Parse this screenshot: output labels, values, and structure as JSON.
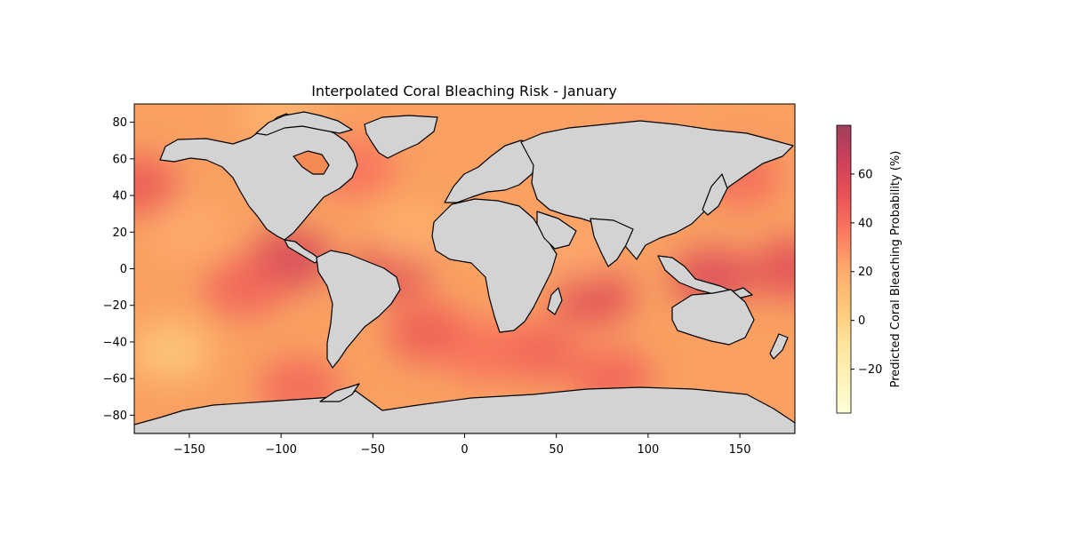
{
  "chart_data": {
    "type": "heatmap",
    "title": "Interpolated Coral Bleaching Risk - January",
    "xlabel": "",
    "ylabel": "",
    "xlim": [
      -180,
      180
    ],
    "ylim": [
      -90,
      90
    ],
    "x_ticks": [
      -150,
      -100,
      -50,
      0,
      50,
      100,
      150
    ],
    "y_ticks": [
      -80,
      -60,
      -40,
      -20,
      0,
      20,
      40,
      60,
      80
    ],
    "x_tick_labels": [
      "−150",
      "−100",
      "−50",
      "0",
      "50",
      "100",
      "150"
    ],
    "y_tick_labels": [
      "−80",
      "−60",
      "−40",
      "−20",
      "0",
      "20",
      "40",
      "60",
      "80"
    ],
    "colorbar": {
      "label": "Predicted Coral Bleaching Probability (%)",
      "range": [
        -38,
        80
      ],
      "ticks": [
        -20,
        0,
        20,
        40,
        60
      ],
      "tick_labels": [
        "−20",
        "0",
        "20",
        "40",
        "60"
      ],
      "colormap": "YlOrRd",
      "alpha": 0.75
    },
    "land_color": "#d3d3d3",
    "coastline_color": "#000000",
    "grid": false,
    "hotspots": [
      {
        "lon": -95,
        "lat": 5,
        "value": 62
      },
      {
        "lon": -40,
        "lat": 0,
        "value": 55
      },
      {
        "lon": 70,
        "lat": -15,
        "value": 55
      },
      {
        "lon": 135,
        "lat": -5,
        "value": 58
      },
      {
        "lon": 178,
        "lat": 0,
        "value": 56
      },
      {
        "lon": -178,
        "lat": 45,
        "value": 50
      },
      {
        "lon": -120,
        "lat": -10,
        "value": 45
      },
      {
        "lon": -20,
        "lat": -35,
        "value": 48
      },
      {
        "lon": 40,
        "lat": -45,
        "value": 46
      },
      {
        "lon": 10,
        "lat": -45,
        "value": 40
      },
      {
        "lon": 150,
        "lat": 50,
        "value": 42
      },
      {
        "lon": -60,
        "lat": 55,
        "value": 40
      },
      {
        "lon": 80,
        "lat": -60,
        "value": 45
      },
      {
        "lon": -90,
        "lat": -65,
        "value": 44
      },
      {
        "lon": -160,
        "lat": -45,
        "value": 5
      },
      {
        "lon": -150,
        "lat": 20,
        "value": 20
      },
      {
        "lon": -30,
        "lat": 20,
        "value": 18
      },
      {
        "lon": 60,
        "lat": 10,
        "value": 22
      },
      {
        "lon": -100,
        "lat": 85,
        "value": 15
      },
      {
        "lon": 100,
        "lat": 85,
        "value": 25
      }
    ]
  }
}
